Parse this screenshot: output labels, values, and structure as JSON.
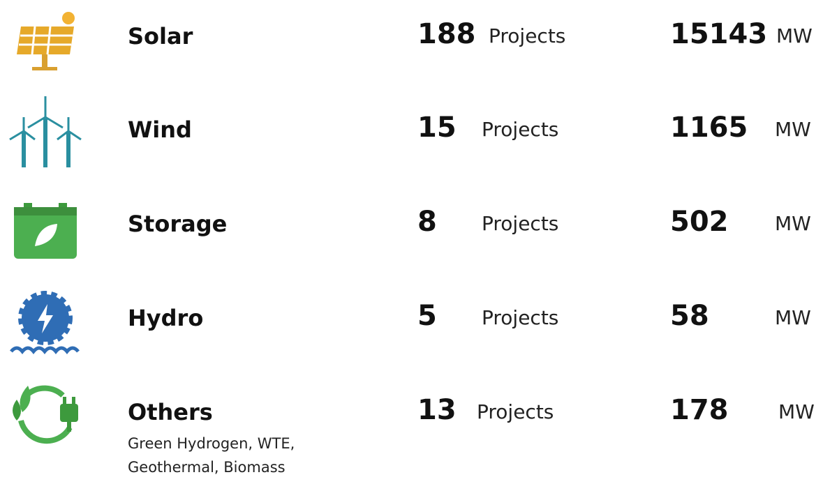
{
  "rows": [
    {
      "name": "Solar",
      "projects": 188,
      "projects_unit": "Projects",
      "capacity": 15143,
      "capacity_unit": "MW"
    },
    {
      "name": "Wind",
      "projects": 15,
      "projects_unit": "Projects",
      "capacity": 1165,
      "capacity_unit": "MW"
    },
    {
      "name": "Storage",
      "projects": 8,
      "projects_unit": "Projects",
      "capacity": 502,
      "capacity_unit": "MW"
    },
    {
      "name": "Hydro",
      "projects": 5,
      "projects_unit": "Projects",
      "capacity": 58,
      "capacity_unit": "MW"
    },
    {
      "name": "Others",
      "note": "Green Hydrogen, WTE, Geothermal, Biomass",
      "projects": 13,
      "projects_unit": "Projects",
      "capacity": 178,
      "capacity_unit": "MW"
    }
  ]
}
